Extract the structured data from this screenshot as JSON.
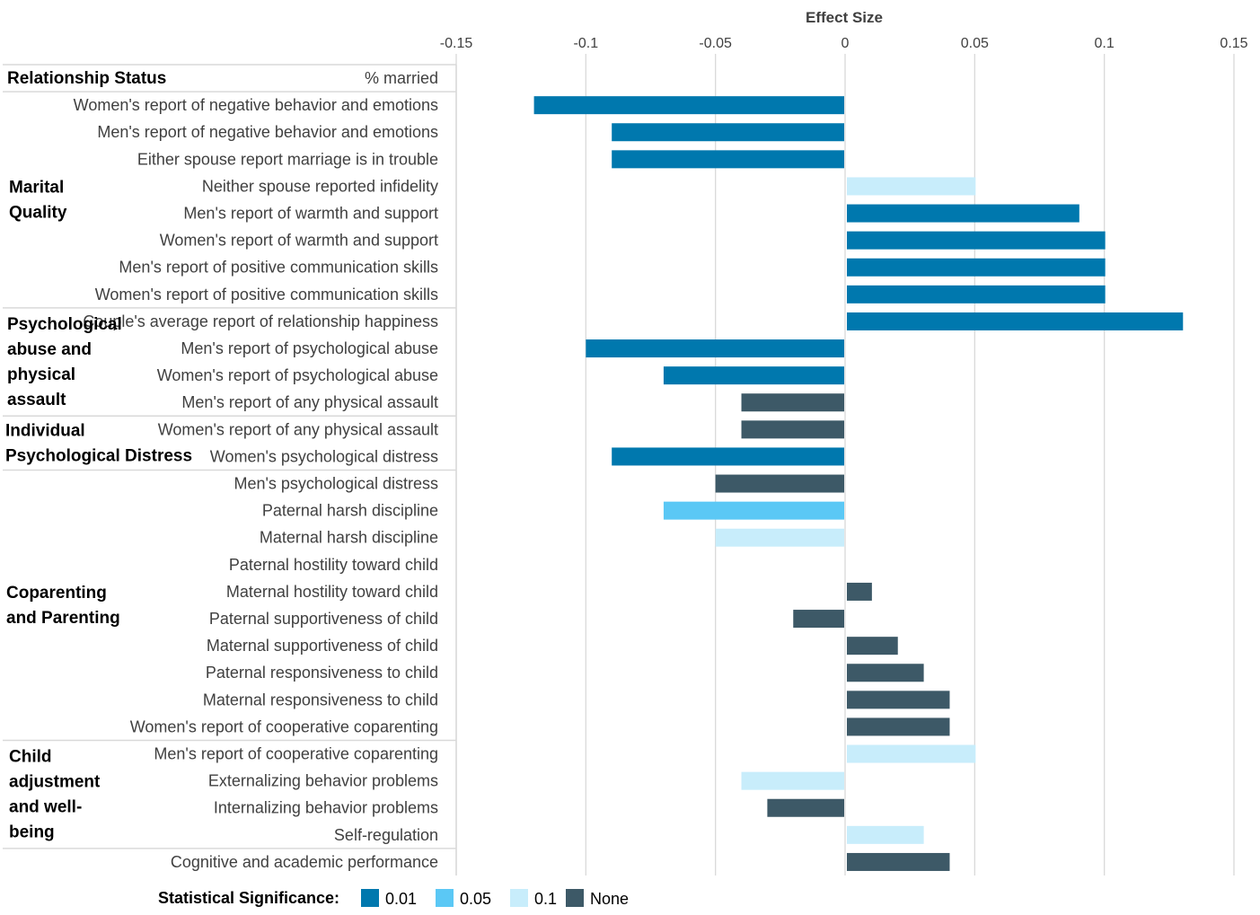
{
  "chart_data": {
    "type": "bar",
    "orientation": "horizontal",
    "title": "",
    "xlabel": "Effect Size",
    "xlim": [
      -0.15,
      0.15
    ],
    "xticks": [
      -0.15,
      -0.1,
      -0.05,
      0,
      0.05,
      0.1,
      0.15
    ],
    "xtick_labels": [
      "-0.15",
      "-0.1",
      "-0.05",
      "0",
      "0.05",
      "0.1",
      "0.15"
    ],
    "grid": true,
    "header_row": {
      "group": "Relationship Status",
      "label": "% married"
    },
    "groups": [
      {
        "name": "Marital Quality",
        "start": 1,
        "end": 8
      },
      {
        "name": "Psychological abuse and physical assault",
        "start": 9,
        "end": 12
      },
      {
        "name": "Individual Psychological Distress",
        "start": 13,
        "end": 14
      },
      {
        "name": "Coparenting and Parenting",
        "start": 15,
        "end": 24
      },
      {
        "name": "Child adjustment and well-being",
        "start": 25,
        "end": 28
      }
    ],
    "rows": [
      {
        "label": "% married",
        "value": null,
        "significance": null
      },
      {
        "label": "Women's report of negative behavior and emotions",
        "value": -0.12,
        "significance": "0.01"
      },
      {
        "label": "Men's report of negative behavior and emotions",
        "value": -0.09,
        "significance": "0.01"
      },
      {
        "label": "Either spouse report marriage is in trouble",
        "value": -0.09,
        "significance": "0.01"
      },
      {
        "label": "Neither spouse reported infidelity",
        "value": 0.05,
        "significance": "0.1"
      },
      {
        "label": "Men's report of warmth and support",
        "value": 0.09,
        "significance": "0.01"
      },
      {
        "label": "Women's report of warmth and support",
        "value": 0.1,
        "significance": "0.01"
      },
      {
        "label": "Men's report of positive communication skills",
        "value": 0.1,
        "significance": "0.01"
      },
      {
        "label": "Women's report of positive communication skills",
        "value": 0.1,
        "significance": "0.01"
      },
      {
        "label": "Couple's average report of relationship happiness",
        "value": 0.13,
        "significance": "0.01"
      },
      {
        "label": "Men's report of psychological abuse",
        "value": -0.1,
        "significance": "0.01"
      },
      {
        "label": "Women's report of psychological abuse",
        "value": -0.07,
        "significance": "0.01"
      },
      {
        "label": "Men's report of any physical assault",
        "value": -0.04,
        "significance": "None"
      },
      {
        "label": "Women's report of any physical assault",
        "value": -0.04,
        "significance": "None"
      },
      {
        "label": "Women's psychological distress",
        "value": -0.09,
        "significance": "0.01"
      },
      {
        "label": "Men's psychological distress",
        "value": -0.05,
        "significance": "None"
      },
      {
        "label": "Paternal harsh discipline",
        "value": -0.07,
        "significance": "0.05"
      },
      {
        "label": "Maternal harsh discipline",
        "value": -0.05,
        "significance": "0.1"
      },
      {
        "label": "Paternal hostility toward child",
        "value": 0,
        "significance": "None"
      },
      {
        "label": "Maternal hostility toward child",
        "value": 0.01,
        "significance": "None"
      },
      {
        "label": "Paternal supportiveness of child",
        "value": -0.02,
        "significance": "None"
      },
      {
        "label": "Maternal supportiveness of child",
        "value": 0.02,
        "significance": "None"
      },
      {
        "label": "Paternal responsiveness to child",
        "value": 0.03,
        "significance": "None"
      },
      {
        "label": "Maternal responsiveness to child",
        "value": 0.04,
        "significance": "None"
      },
      {
        "label": "Women's report of cooperative coparenting",
        "value": 0.04,
        "significance": "None"
      },
      {
        "label": "Men's report of cooperative coparenting",
        "value": 0.05,
        "significance": "0.1"
      },
      {
        "label": "Externalizing behavior problems",
        "value": -0.04,
        "significance": "0.1"
      },
      {
        "label": "Internalizing behavior problems",
        "value": -0.03,
        "significance": "None"
      },
      {
        "label": "Self-regulation",
        "value": 0.03,
        "significance": "0.1"
      },
      {
        "label": "Cognitive and academic performance",
        "value": 0.04,
        "significance": "None"
      }
    ],
    "legend": {
      "title": "Statistical Significance:",
      "placement": "bottom",
      "items": [
        {
          "key": "0.01",
          "label": "0.01",
          "color": "#0078AE"
        },
        {
          "key": "0.05",
          "label": "0.05",
          "color": "#5BC8F5"
        },
        {
          "key": "0.1",
          "label": "0.1",
          "color": "#C8EDFB"
        },
        {
          "key": "None",
          "label": "None",
          "color": "#3D5967"
        }
      ]
    }
  }
}
